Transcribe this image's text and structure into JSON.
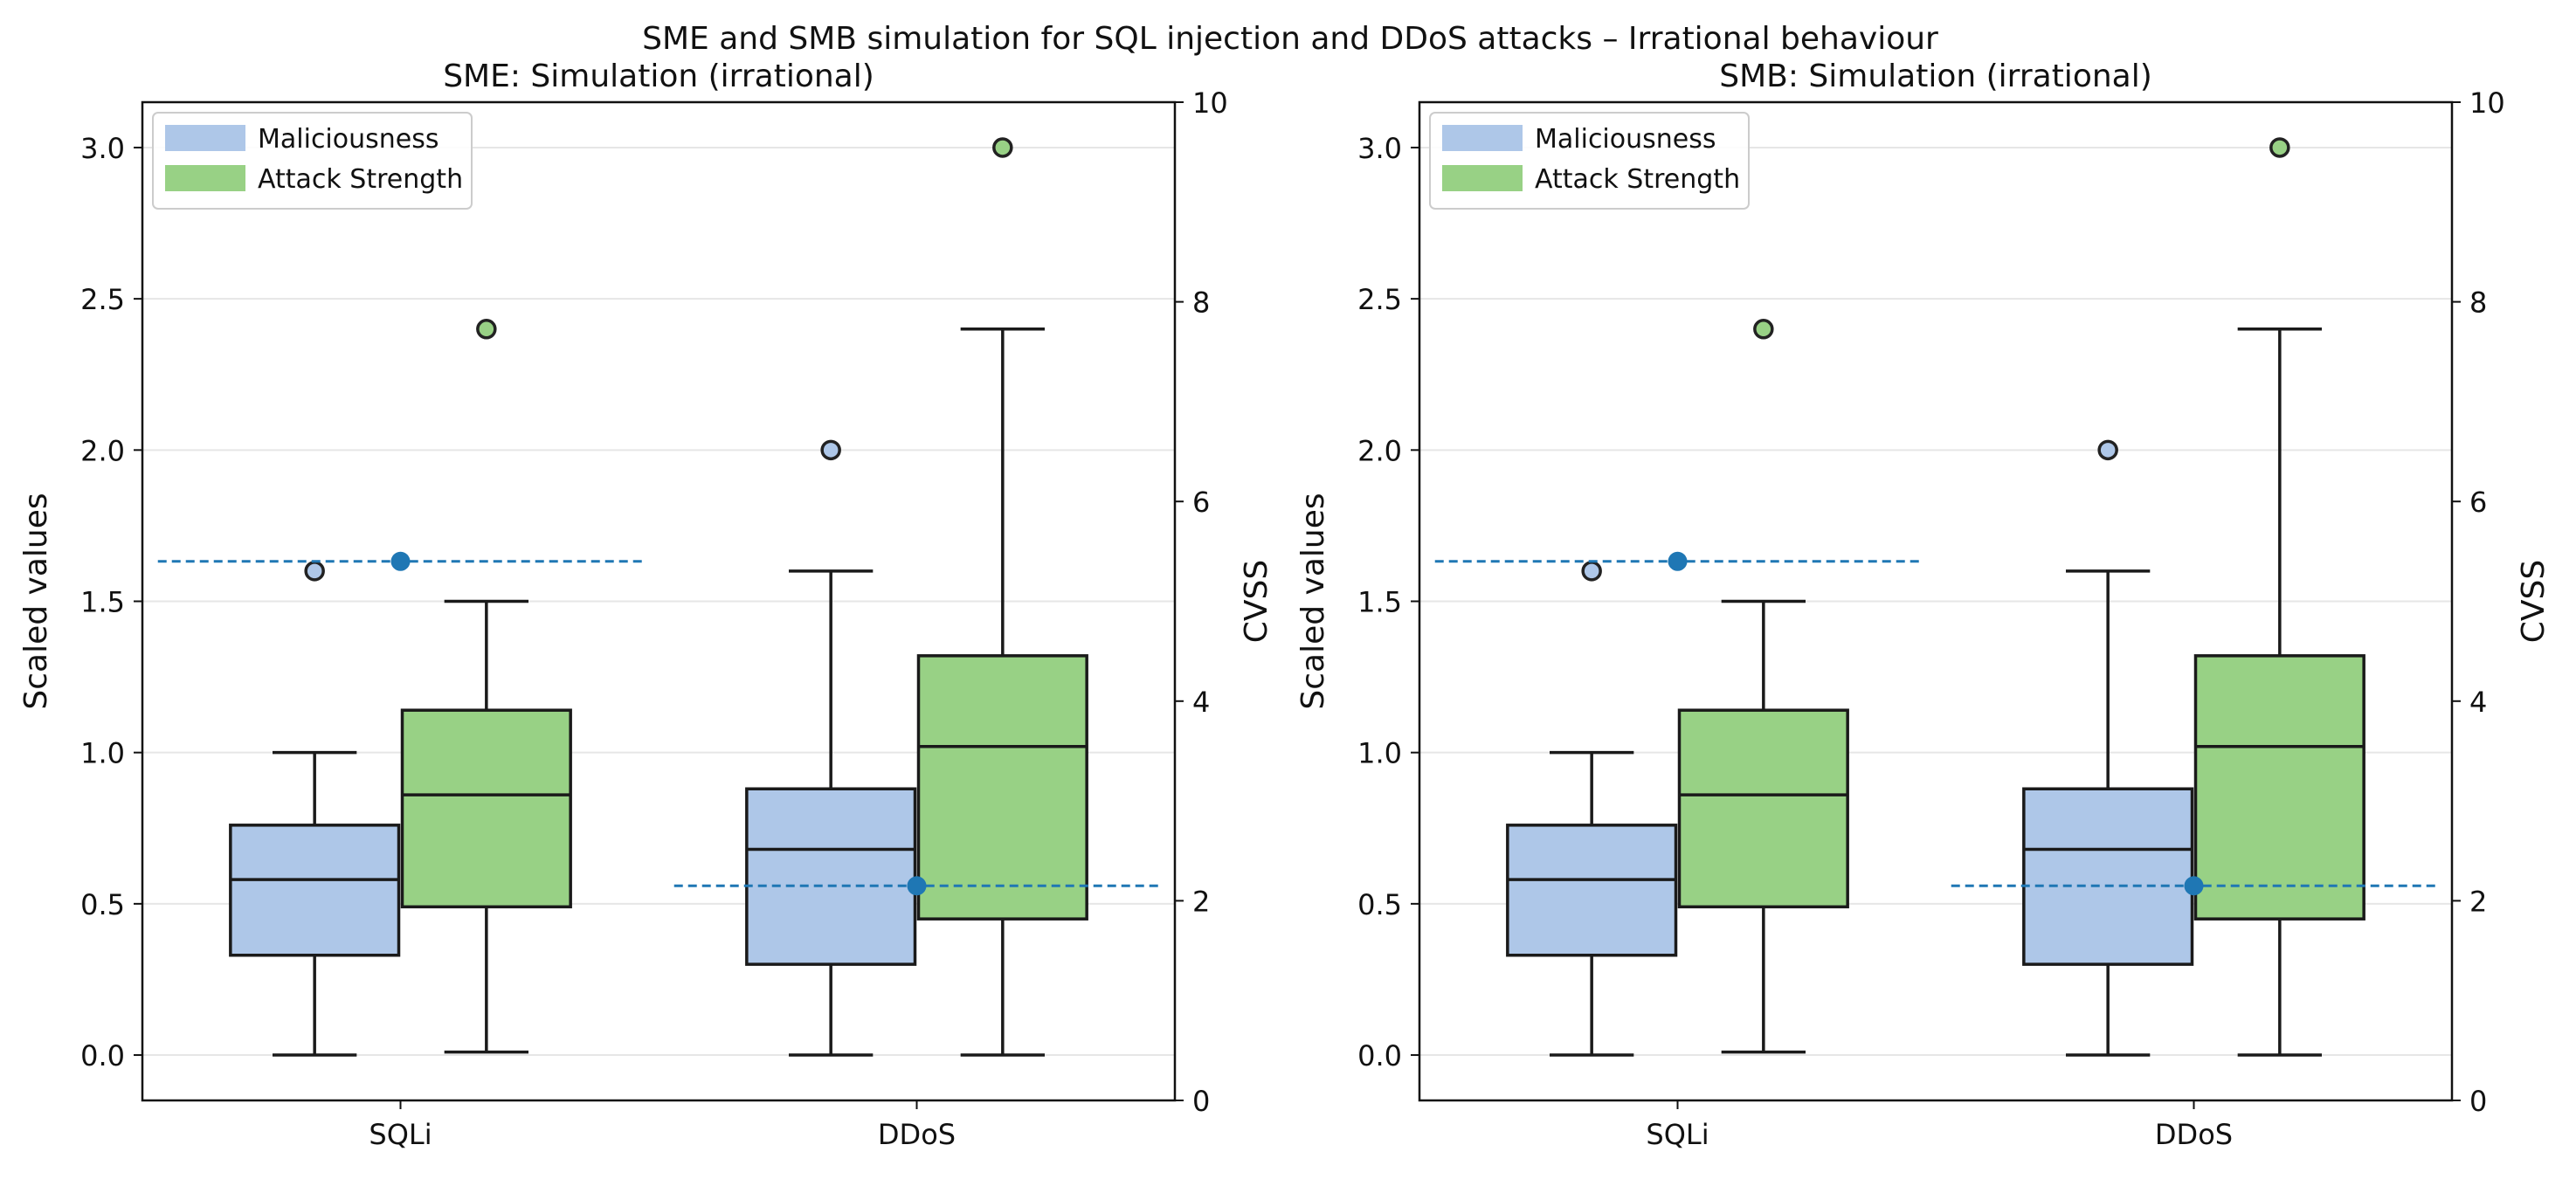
{
  "figure_title": "SME and SMB simulation for SQL injection and DDoS attacks – Irrational behaviour",
  "colors": {
    "maliciousness": "#aec7e8",
    "attack_strength": "#98d185",
    "cvss": "#1f77b4",
    "box_edge": "#1a1a1a",
    "grid": "#e6e6e6"
  },
  "chart_data": [
    {
      "type": "box",
      "title": "SME: Simulation (irrational)",
      "xlabel": "",
      "ylabel": "Scaled values",
      "y2label": "CVSS",
      "ylim": [
        -0.15,
        3.15
      ],
      "y2lim": [
        0,
        10
      ],
      "yticks": [
        "0.0",
        "0.5",
        "1.0",
        "1.5",
        "2.0",
        "2.5",
        "3.0"
      ],
      "y2ticks": [
        "0",
        "2",
        "4",
        "6",
        "8",
        "10"
      ],
      "categories": [
        "SQLi",
        "DDoS"
      ],
      "legend": [
        "Maliciousness",
        "Attack Strength"
      ],
      "legend_position": "top-left",
      "series": [
        {
          "name": "Maliciousness",
          "boxes": [
            {
              "whislo": 0.0,
              "q1": 0.33,
              "med": 0.58,
              "q3": 0.76,
              "whishi": 1.0,
              "fliers": [
                1.6
              ]
            },
            {
              "whislo": 0.0,
              "q1": 0.3,
              "med": 0.68,
              "q3": 0.88,
              "whishi": 1.6,
              "fliers": [
                2.0
              ]
            }
          ]
        },
        {
          "name": "Attack Strength",
          "boxes": [
            {
              "whislo": 0.01,
              "q1": 0.49,
              "med": 0.86,
              "q3": 1.14,
              "whishi": 1.5,
              "fliers": [
                2.4
              ]
            },
            {
              "whislo": 0.0,
              "q1": 0.45,
              "med": 1.02,
              "q3": 1.32,
              "whishi": 2.4,
              "fliers": [
                3.0
              ]
            }
          ]
        }
      ],
      "cvss": [
        5.4,
        2.15
      ]
    },
    {
      "type": "box",
      "title": "SMB: Simulation (irrational)",
      "xlabel": "",
      "ylabel": "Scaled values",
      "y2label": "CVSS",
      "ylim": [
        -0.15,
        3.15
      ],
      "y2lim": [
        0,
        10
      ],
      "yticks": [
        "0.0",
        "0.5",
        "1.0",
        "1.5",
        "2.0",
        "2.5",
        "3.0"
      ],
      "y2ticks": [
        "0",
        "2",
        "4",
        "6",
        "8",
        "10"
      ],
      "categories": [
        "SQLi",
        "DDoS"
      ],
      "legend": [
        "Maliciousness",
        "Attack Strength"
      ],
      "legend_position": "top-left",
      "series": [
        {
          "name": "Maliciousness",
          "boxes": [
            {
              "whislo": 0.0,
              "q1": 0.33,
              "med": 0.58,
              "q3": 0.76,
              "whishi": 1.0,
              "fliers": [
                1.6
              ]
            },
            {
              "whislo": 0.0,
              "q1": 0.3,
              "med": 0.68,
              "q3": 0.88,
              "whishi": 1.6,
              "fliers": [
                2.0
              ]
            }
          ]
        },
        {
          "name": "Attack Strength",
          "boxes": [
            {
              "whislo": 0.01,
              "q1": 0.49,
              "med": 0.86,
              "q3": 1.14,
              "whishi": 1.5,
              "fliers": [
                2.4
              ]
            },
            {
              "whislo": 0.0,
              "q1": 0.45,
              "med": 1.02,
              "q3": 1.32,
              "whishi": 2.4,
              "fliers": [
                3.0
              ]
            }
          ]
        }
      ],
      "cvss": [
        5.4,
        2.15
      ]
    }
  ]
}
